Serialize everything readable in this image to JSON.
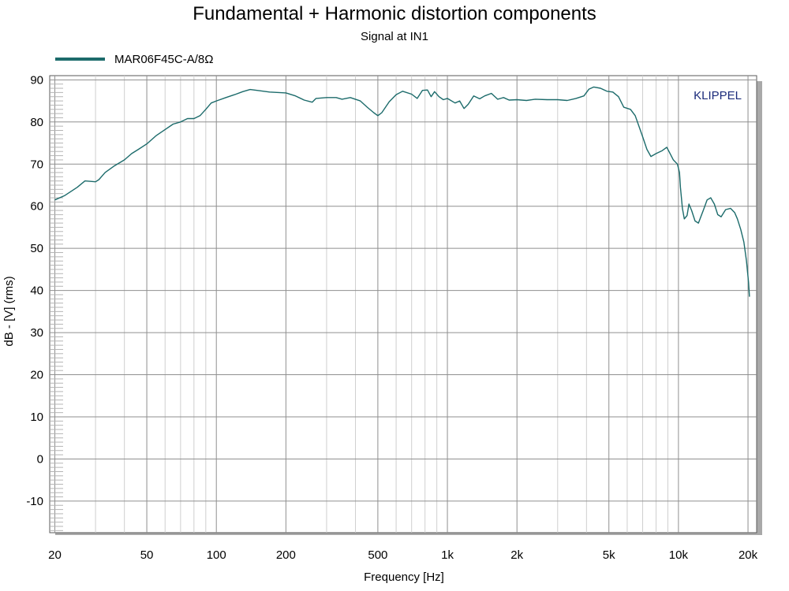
{
  "chart_data": {
    "type": "line",
    "title": "Fundamental + Harmonic distortion components",
    "subtitle": "Signal at IN1",
    "xlabel": "Frequency [Hz]",
    "ylabel": "dB - [V]  (rms)",
    "brand": "KLIPPEL",
    "xscale": "log",
    "xlim": [
      19,
      21800
    ],
    "ylim": [
      -17.5,
      91
    ],
    "grid": true,
    "legend_position": "top-left",
    "x_ticks": [
      {
        "value": 20,
        "label": "20"
      },
      {
        "value": 50,
        "label": "50"
      },
      {
        "value": 100,
        "label": "100"
      },
      {
        "value": 200,
        "label": "200"
      },
      {
        "value": 500,
        "label": "500"
      },
      {
        "value": 1000,
        "label": "1k"
      },
      {
        "value": 2000,
        "label": "2k"
      },
      {
        "value": 5000,
        "label": "5k"
      },
      {
        "value": 10000,
        "label": "10k"
      },
      {
        "value": 20000,
        "label": "20k"
      }
    ],
    "y_ticks": [
      {
        "value": 90,
        "label": "90"
      },
      {
        "value": 80,
        "label": "80"
      },
      {
        "value": 70,
        "label": "70"
      },
      {
        "value": 60,
        "label": "60"
      },
      {
        "value": 50,
        "label": "50"
      },
      {
        "value": 40,
        "label": "40"
      },
      {
        "value": 30,
        "label": "30"
      },
      {
        "value": 20,
        "label": "20"
      },
      {
        "value": 10,
        "label": "10"
      },
      {
        "value": 0,
        "label": "0"
      },
      {
        "value": -10,
        "label": "-10"
      }
    ],
    "series": [
      {
        "name": "MAR06F45C-A/8Ω",
        "color": "#1c6b6b",
        "points": [
          [
            20,
            61.5
          ],
          [
            22,
            62.5
          ],
          [
            25,
            64.5
          ],
          [
            27,
            66.0
          ],
          [
            30,
            65.8
          ],
          [
            31,
            66.3
          ],
          [
            33,
            68.0
          ],
          [
            36,
            69.5
          ],
          [
            40,
            71.0
          ],
          [
            43,
            72.5
          ],
          [
            46,
            73.5
          ],
          [
            50,
            74.8
          ],
          [
            55,
            76.8
          ],
          [
            60,
            78.2
          ],
          [
            65,
            79.5
          ],
          [
            70,
            80.0
          ],
          [
            75,
            80.8
          ],
          [
            80,
            80.8
          ],
          [
            85,
            81.5
          ],
          [
            90,
            83.0
          ],
          [
            95,
            84.5
          ],
          [
            100,
            85.0
          ],
          [
            110,
            85.8
          ],
          [
            120,
            86.5
          ],
          [
            130,
            87.2
          ],
          [
            140,
            87.7
          ],
          [
            150,
            87.5
          ],
          [
            170,
            87.1
          ],
          [
            200,
            86.9
          ],
          [
            220,
            86.2
          ],
          [
            240,
            85.2
          ],
          [
            260,
            84.7
          ],
          [
            270,
            85.6
          ],
          [
            300,
            85.8
          ],
          [
            330,
            85.8
          ],
          [
            350,
            85.4
          ],
          [
            380,
            85.8
          ],
          [
            420,
            85.0
          ],
          [
            450,
            83.5
          ],
          [
            480,
            82.2
          ],
          [
            500,
            81.5
          ],
          [
            520,
            82.2
          ],
          [
            560,
            84.8
          ],
          [
            600,
            86.5
          ],
          [
            640,
            87.3
          ],
          [
            700,
            86.6
          ],
          [
            740,
            85.6
          ],
          [
            780,
            87.5
          ],
          [
            820,
            87.6
          ],
          [
            850,
            86.0
          ],
          [
            880,
            87.2
          ],
          [
            920,
            86.0
          ],
          [
            960,
            85.3
          ],
          [
            1000,
            85.6
          ],
          [
            1080,
            84.5
          ],
          [
            1130,
            85.0
          ],
          [
            1180,
            83.2
          ],
          [
            1230,
            84.2
          ],
          [
            1300,
            86.2
          ],
          [
            1380,
            85.5
          ],
          [
            1450,
            86.2
          ],
          [
            1550,
            86.8
          ],
          [
            1650,
            85.4
          ],
          [
            1750,
            85.8
          ],
          [
            1850,
            85.2
          ],
          [
            2000,
            85.3
          ],
          [
            2200,
            85.1
          ],
          [
            2400,
            85.4
          ],
          [
            2700,
            85.3
          ],
          [
            3000,
            85.3
          ],
          [
            3300,
            85.1
          ],
          [
            3600,
            85.6
          ],
          [
            3900,
            86.2
          ],
          [
            4100,
            87.8
          ],
          [
            4300,
            88.3
          ],
          [
            4600,
            88.0
          ],
          [
            4900,
            87.3
          ],
          [
            5200,
            87.1
          ],
          [
            5500,
            86.0
          ],
          [
            5800,
            83.5
          ],
          [
            6200,
            83.0
          ],
          [
            6500,
            81.5
          ],
          [
            7000,
            76.5
          ],
          [
            7300,
            73.5
          ],
          [
            7600,
            71.8
          ],
          [
            8000,
            72.5
          ],
          [
            8500,
            73.2
          ],
          [
            8900,
            74.0
          ],
          [
            9200,
            72.5
          ],
          [
            9500,
            71.0
          ],
          [
            9900,
            70.0
          ],
          [
            10100,
            68.0
          ],
          [
            10200,
            64.5
          ],
          [
            10400,
            59.5
          ],
          [
            10600,
            57.0
          ],
          [
            10900,
            57.8
          ],
          [
            11100,
            60.5
          ],
          [
            11400,
            59.0
          ],
          [
            11800,
            56.5
          ],
          [
            12200,
            56.0
          ],
          [
            12800,
            59.0
          ],
          [
            13300,
            61.5
          ],
          [
            13800,
            62.0
          ],
          [
            14300,
            60.5
          ],
          [
            14800,
            58.0
          ],
          [
            15300,
            57.5
          ],
          [
            16000,
            59.2
          ],
          [
            16800,
            59.5
          ],
          [
            17500,
            58.5
          ],
          [
            18000,
            57.0
          ],
          [
            18600,
            54.5
          ],
          [
            19200,
            51.5
          ],
          [
            19700,
            47.0
          ],
          [
            20100,
            42.0
          ],
          [
            20300,
            38.5
          ]
        ]
      }
    ]
  }
}
